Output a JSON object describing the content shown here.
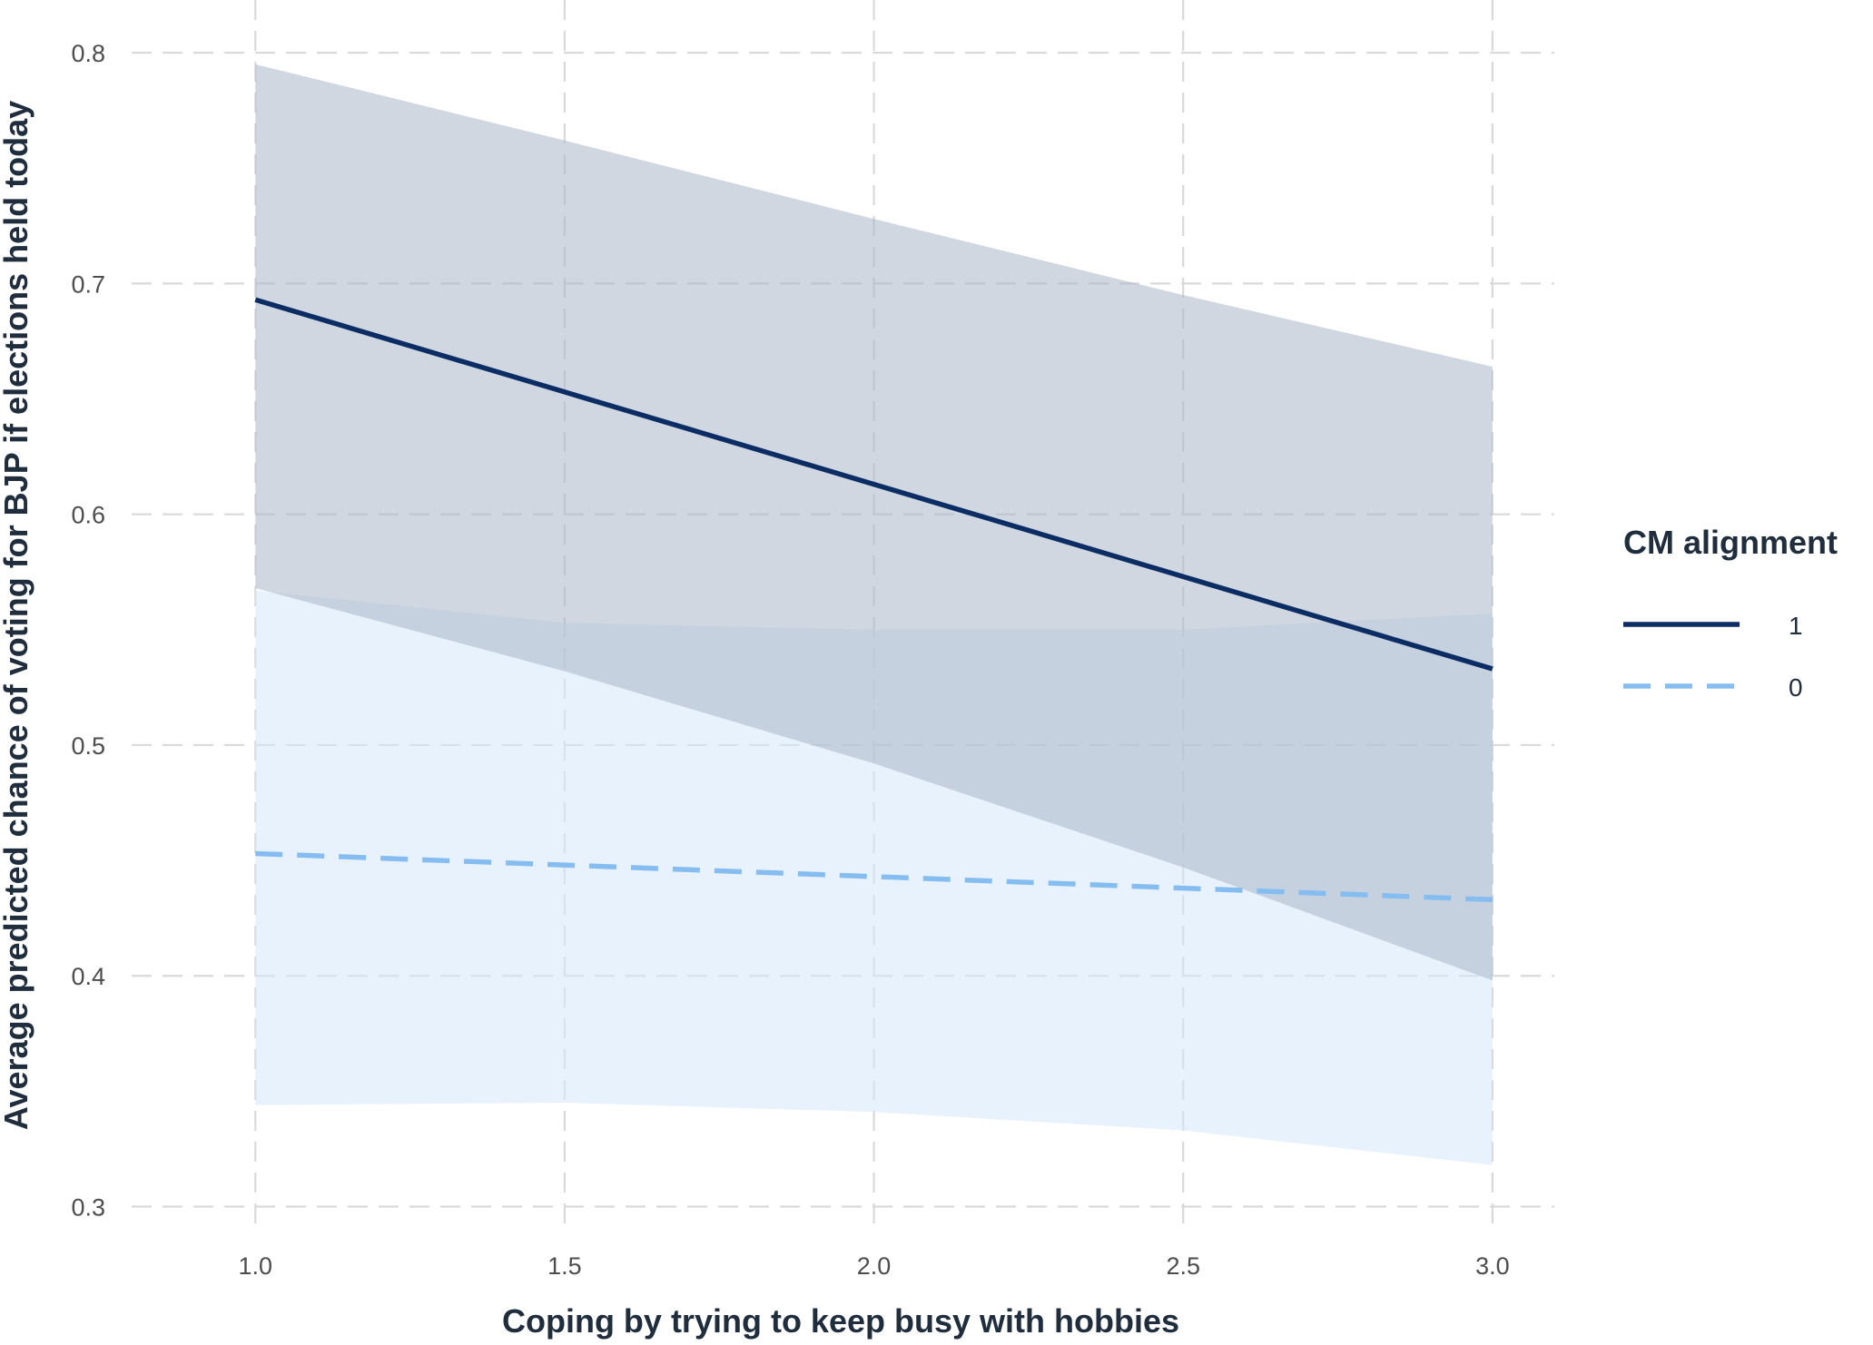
{
  "chart_data": {
    "type": "line",
    "xlabel": "Coping by trying to keep busy with hobbies",
    "ylabel": "Average predicted chance of voting for BJP if elections held today",
    "xlim": [
      0.8,
      3.1
    ],
    "ylim": [
      0.288,
      0.815
    ],
    "xticks": [
      1.0,
      1.5,
      2.0,
      2.5,
      3.0
    ],
    "xtick_labels": [
      "1.0",
      "1.5",
      "2.0",
      "2.5",
      "3.0"
    ],
    "yticks": [
      0.3,
      0.4,
      0.5,
      0.6,
      0.7,
      0.8
    ],
    "ytick_labels": [
      "0.3",
      "0.4",
      "0.5",
      "0.6",
      "0.7",
      "0.8"
    ],
    "grid": true,
    "legend": {
      "title": "CM alignment",
      "position": "right"
    },
    "series": [
      {
        "name": "1",
        "line_style": "solid",
        "color": "#0b2d63",
        "band_color": "#a9b6c9",
        "x": [
          1.0,
          1.5,
          2.0,
          2.5,
          3.0
        ],
        "y": [
          0.693,
          0.653,
          0.613,
          0.573,
          0.533
        ],
        "lower": [
          0.568,
          0.532,
          0.492,
          0.447,
          0.398
        ],
        "upper": [
          0.795,
          0.762,
          0.728,
          0.695,
          0.664
        ]
      },
      {
        "name": "0",
        "line_style": "dashed",
        "color": "#85bdf0",
        "band_color": "#d5e8fa",
        "x": [
          1.0,
          1.5,
          2.0,
          2.5,
          3.0
        ],
        "y": [
          0.453,
          0.448,
          0.443,
          0.438,
          0.433
        ],
        "lower": [
          0.344,
          0.345,
          0.341,
          0.333,
          0.318
        ],
        "upper": [
          0.567,
          0.553,
          0.55,
          0.55,
          0.557
        ]
      }
    ]
  }
}
